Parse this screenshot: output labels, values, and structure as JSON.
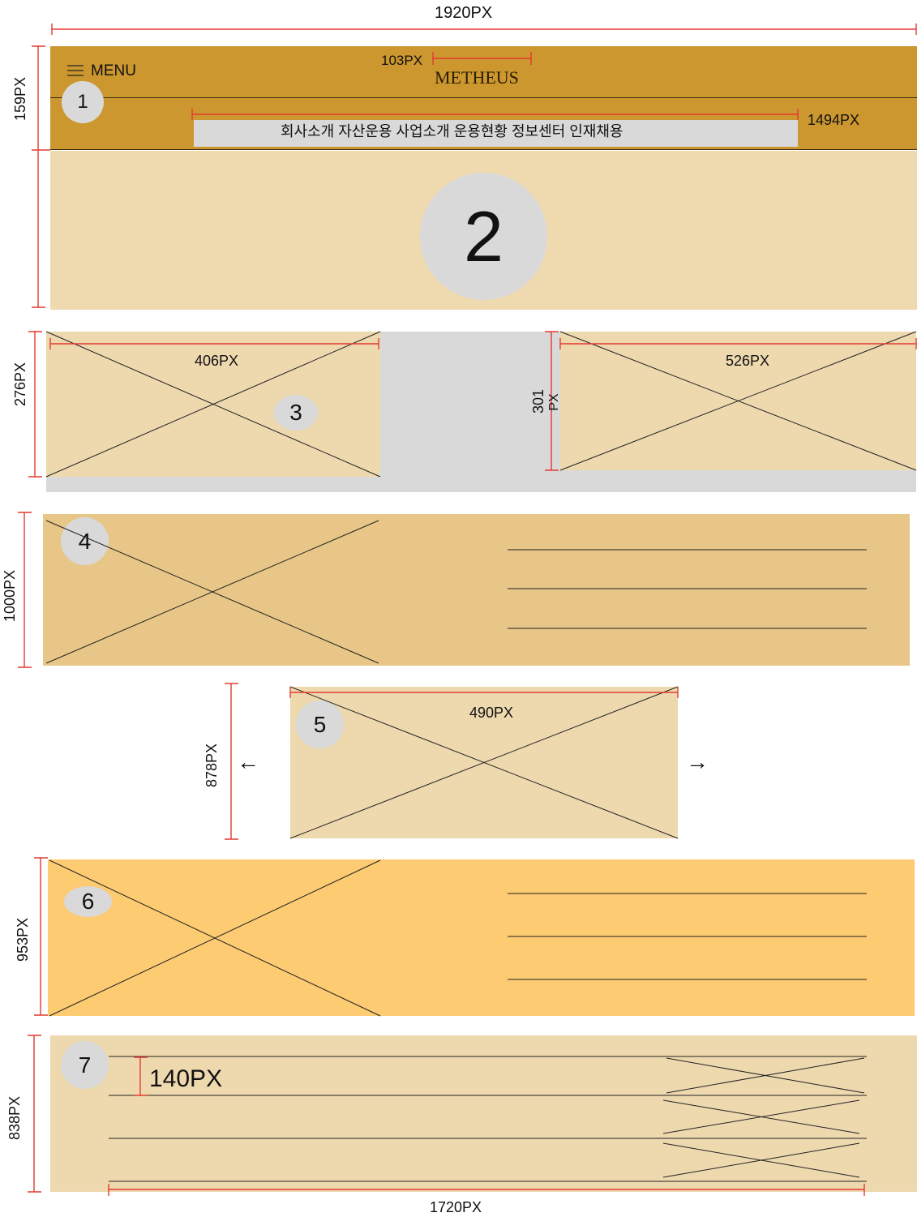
{
  "header": {
    "menu_label": "MENU",
    "logo_text": "METHEUS",
    "nav_text": "회사소개 자산운용 사업소개 운용현황 정보센터 인재채용",
    "menu_icon": "hamburger-icon"
  },
  "sections": [
    {
      "badge": "1"
    },
    {
      "badge": "2"
    },
    {
      "badge": "3"
    },
    {
      "badge": "4"
    },
    {
      "badge": "5"
    },
    {
      "badge": "6"
    },
    {
      "badge": "7"
    }
  ],
  "dimensions": {
    "total_width": "1920PX",
    "logo_width": "103PX",
    "nav_width": "1494PX",
    "header_height": "159PX",
    "s3_height": "276PX",
    "s3_left_width": "406PX",
    "s3_right_height_a": "301",
    "s3_right_height_b": "PX",
    "s3_right_width": "526PX",
    "s4_height": "1000PX",
    "s5_height": "878PX",
    "s5_width": "490PX",
    "s6_height": "953PX",
    "s7_height": "838PX",
    "s7_row_height": "140PX",
    "s7_width": "1720PX"
  },
  "carousel": {
    "prev_arrow": "←",
    "next_arrow": "→"
  },
  "colors": {
    "header_bg": "#cd972f",
    "hero_bg": "#efdab0",
    "block_light": "#eed9af",
    "block_mid": "#e8c687",
    "block_bright": "#fdcb71",
    "placeholder_gray": "#d9d9d9",
    "dimension_red": "#e23a30"
  }
}
